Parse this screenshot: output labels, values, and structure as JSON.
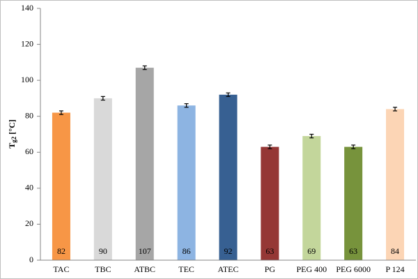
{
  "chart_data": {
    "type": "bar",
    "ylabel": "T",
    "ylabel_subscript": "g2",
    "ylabel_unit": "[°C]",
    "categories": [
      "TAC",
      "TBC",
      "ATBC",
      "TEC",
      "ATEC",
      "PG",
      "PEG 400",
      "PEG 6000",
      "P 124"
    ],
    "values": [
      82,
      90,
      107,
      86,
      92,
      63,
      69,
      63,
      84
    ],
    "errors": [
      1,
      1,
      1,
      1,
      1,
      1,
      1,
      1,
      1
    ],
    "colors": [
      "#f79646",
      "#d9d9d9",
      "#a6a6a6",
      "#8db4e2",
      "#376092",
      "#953735",
      "#c3d69b",
      "#77933c",
      "#fcd5b5"
    ],
    "ylim": [
      0,
      140
    ],
    "yticks": [
      0,
      20,
      40,
      60,
      80,
      100,
      120,
      140
    ],
    "grid": false
  }
}
